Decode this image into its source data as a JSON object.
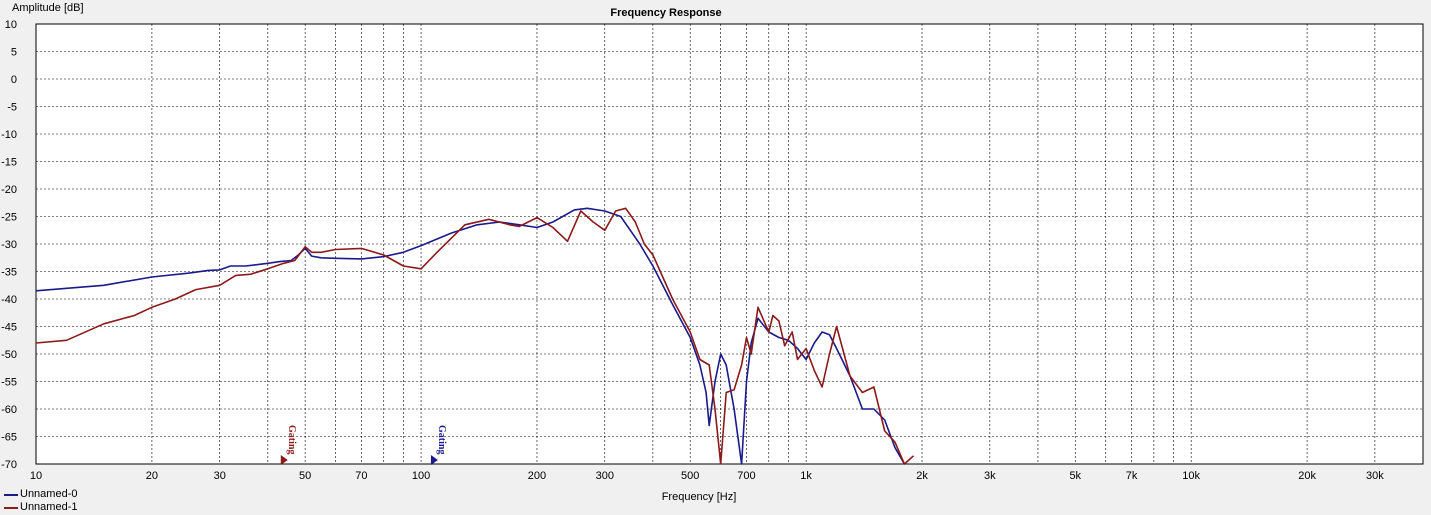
{
  "chart_data": {
    "type": "line",
    "title": "Frequency Response",
    "xlabel": "Frequency [Hz]",
    "ylabel": "Amplitude [dB]",
    "xscale": "log",
    "xlim": [
      10,
      40000
    ],
    "ylim": [
      -70,
      10
    ],
    "grid": true,
    "y_ticks": [
      "10",
      "5",
      "0",
      "-5",
      "-10",
      "-15",
      "-20",
      "-25",
      "-30",
      "-35",
      "-40",
      "-45",
      "-50",
      "-55",
      "-60",
      "-65",
      "-70"
    ],
    "x_ticks": [
      {
        "v": 10,
        "label": "10"
      },
      {
        "v": 20,
        "label": "20"
      },
      {
        "v": 30,
        "label": "30"
      },
      {
        "v": 50,
        "label": "50"
      },
      {
        "v": 70,
        "label": "70"
      },
      {
        "v": 100,
        "label": "100"
      },
      {
        "v": 200,
        "label": "200"
      },
      {
        "v": 300,
        "label": "300"
      },
      {
        "v": 500,
        "label": "500"
      },
      {
        "v": 700,
        "label": "700"
      },
      {
        "v": 1000,
        "label": "1k"
      },
      {
        "v": 2000,
        "label": "2k"
      },
      {
        "v": 3000,
        "label": "3k"
      },
      {
        "v": 5000,
        "label": "5k"
      },
      {
        "v": 7000,
        "label": "7k"
      },
      {
        "v": 10000,
        "label": "10k"
      },
      {
        "v": 20000,
        "label": "20k"
      },
      {
        "v": 30000,
        "label": "30k"
      }
    ],
    "series": [
      {
        "name": "Unnamed-0",
        "color": "#1a1a8c",
        "points": [
          [
            10,
            -38.5
          ],
          [
            15,
            -37.5
          ],
          [
            20,
            -36
          ],
          [
            25,
            -35.3
          ],
          [
            28,
            -34.8
          ],
          [
            30,
            -34.7
          ],
          [
            32,
            -34
          ],
          [
            35,
            -34
          ],
          [
            37,
            -33.8
          ],
          [
            40,
            -33.5
          ],
          [
            43,
            -33.2
          ],
          [
            46,
            -33
          ],
          [
            48,
            -32
          ],
          [
            50,
            -30.8
          ],
          [
            52,
            -32.2
          ],
          [
            55,
            -32.5
          ],
          [
            60,
            -32.6
          ],
          [
            70,
            -32.7
          ],
          [
            80,
            -32.3
          ],
          [
            90,
            -31.5
          ],
          [
            100,
            -30.3
          ],
          [
            120,
            -28
          ],
          [
            140,
            -26.5
          ],
          [
            160,
            -26
          ],
          [
            180,
            -26.5
          ],
          [
            200,
            -27
          ],
          [
            220,
            -26
          ],
          [
            250,
            -23.8
          ],
          [
            270,
            -23.5
          ],
          [
            300,
            -24
          ],
          [
            330,
            -25
          ],
          [
            370,
            -30
          ],
          [
            400,
            -34
          ],
          [
            450,
            -41
          ],
          [
            500,
            -47
          ],
          [
            530,
            -52
          ],
          [
            550,
            -57
          ],
          [
            560,
            -63
          ],
          [
            580,
            -55
          ],
          [
            600,
            -50
          ],
          [
            620,
            -52
          ],
          [
            650,
            -60
          ],
          [
            680,
            -70
          ],
          [
            700,
            -55
          ],
          [
            720,
            -48
          ],
          [
            750,
            -43.5
          ],
          [
            800,
            -46
          ],
          [
            850,
            -47
          ],
          [
            900,
            -47.5
          ],
          [
            950,
            -49
          ],
          [
            1000,
            -51
          ],
          [
            1050,
            -48
          ],
          [
            1100,
            -46
          ],
          [
            1150,
            -46.5
          ],
          [
            1200,
            -49
          ],
          [
            1300,
            -54
          ],
          [
            1400,
            -60
          ],
          [
            1500,
            -60
          ],
          [
            1600,
            -62
          ],
          [
            1700,
            -67
          ],
          [
            1800,
            -70
          ]
        ]
      },
      {
        "name": "Unnamed-1",
        "color": "#8b1a1a",
        "points": [
          [
            10,
            -48
          ],
          [
            12,
            -47.5
          ],
          [
            15,
            -44.5
          ],
          [
            18,
            -43
          ],
          [
            20,
            -41.5
          ],
          [
            23,
            -40
          ],
          [
            26,
            -38.3
          ],
          [
            30,
            -37.5
          ],
          [
            33,
            -35.7
          ],
          [
            36,
            -35.5
          ],
          [
            40,
            -34.5
          ],
          [
            44,
            -33.5
          ],
          [
            47,
            -33
          ],
          [
            50,
            -30.5
          ],
          [
            52,
            -31.5
          ],
          [
            55,
            -31.5
          ],
          [
            60,
            -31
          ],
          [
            70,
            -30.8
          ],
          [
            80,
            -32
          ],
          [
            90,
            -34
          ],
          [
            100,
            -34.5
          ],
          [
            110,
            -31.5
          ],
          [
            130,
            -26.5
          ],
          [
            150,
            -25.5
          ],
          [
            170,
            -26.5
          ],
          [
            180,
            -26.8
          ],
          [
            200,
            -25.2
          ],
          [
            220,
            -27
          ],
          [
            240,
            -29.5
          ],
          [
            260,
            -24
          ],
          [
            280,
            -26
          ],
          [
            300,
            -27.5
          ],
          [
            320,
            -24
          ],
          [
            340,
            -23.5
          ],
          [
            360,
            -26
          ],
          [
            380,
            -30
          ],
          [
            400,
            -32
          ],
          [
            450,
            -40
          ],
          [
            500,
            -46
          ],
          [
            530,
            -51
          ],
          [
            560,
            -52
          ],
          [
            580,
            -60
          ],
          [
            600,
            -70
          ],
          [
            620,
            -57
          ],
          [
            650,
            -56.5
          ],
          [
            680,
            -52
          ],
          [
            700,
            -47
          ],
          [
            720,
            -50
          ],
          [
            750,
            -41.5
          ],
          [
            800,
            -46
          ],
          [
            820,
            -43
          ],
          [
            850,
            -44
          ],
          [
            880,
            -48.5
          ],
          [
            920,
            -46
          ],
          [
            950,
            -51
          ],
          [
            1000,
            -49
          ],
          [
            1050,
            -53
          ],
          [
            1100,
            -56
          ],
          [
            1150,
            -50
          ],
          [
            1200,
            -45
          ],
          [
            1300,
            -54
          ],
          [
            1400,
            -57
          ],
          [
            1500,
            -56
          ],
          [
            1600,
            -64
          ],
          [
            1700,
            -66
          ],
          [
            1800,
            -70
          ],
          [
            1900,
            -68.5
          ]
        ]
      }
    ],
    "annotations": [
      {
        "text": "Gating",
        "x": 44,
        "color": "#8b1a1a"
      },
      {
        "text": "Gating",
        "x": 108,
        "color": "#1a1a8c"
      }
    ]
  }
}
